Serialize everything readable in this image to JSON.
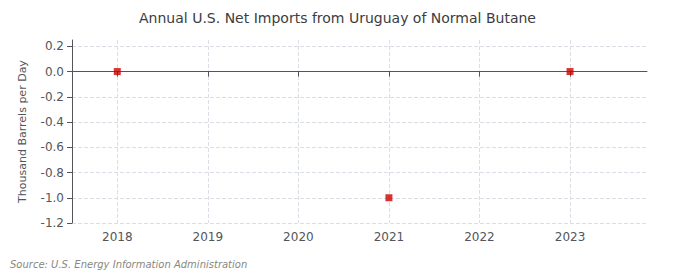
{
  "chart_data": {
    "type": "scatter",
    "title": "Annual U.S. Net Imports from Uruguay of Normal Butane",
    "ylabel": "Thousand Barrels per Day",
    "source": "Source: U.S. Energy Information Administration",
    "x": [
      2018,
      2021,
      2023
    ],
    "values": [
      0.0,
      -1.0,
      0.0
    ],
    "color": "#cc0000",
    "marker": "square",
    "xlim": [
      2017.5,
      2023.85
    ],
    "xticks": [
      2018,
      2019,
      2020,
      2021,
      2022,
      2023
    ],
    "ylim": [
      -1.2,
      0.25
    ],
    "yticks": [
      0.2,
      {
        "value": 0.0,
        "label": "0.0"
      },
      -0.2,
      -0.4,
      -0.6,
      -0.8,
      {
        "value": -1.0,
        "label": "-1.0"
      },
      -1.2
    ],
    "grid": true
  }
}
